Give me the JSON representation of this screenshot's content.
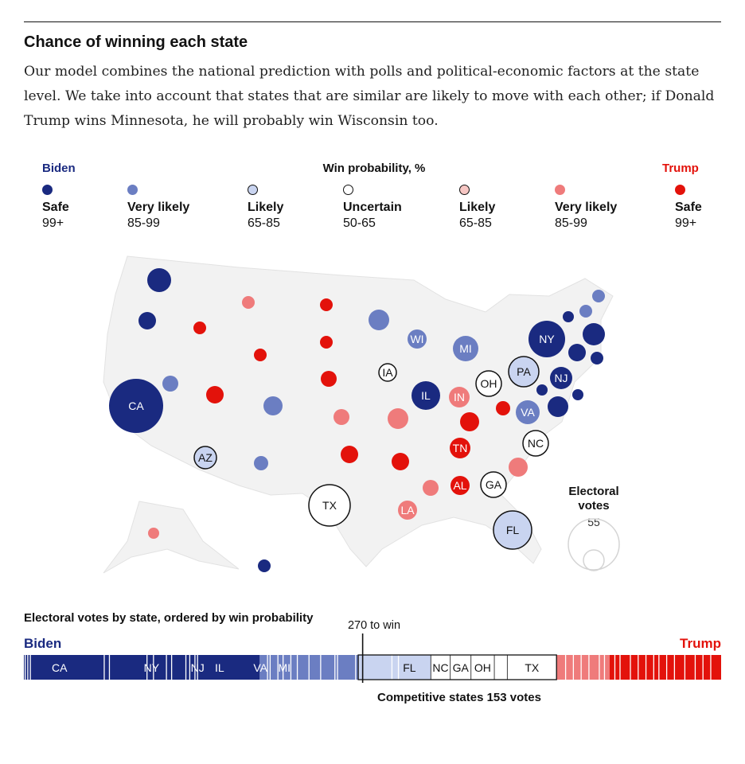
{
  "header": {
    "title": "Chance of winning each state",
    "subtitle": "Our model combines the national prediction with polls and political-economic factors at the state level. We take into account that states that are similar are likely to move with each other; if Donald Trump wins Minnesota, he will probably win Wisconsin too."
  },
  "legend": {
    "left_label": "Biden",
    "heading": "Win probability, %",
    "right_label": "Trump",
    "items": [
      {
        "label": "Safe",
        "range": "99+",
        "fill": "#1a2a80",
        "stroke": "#1a2a80"
      },
      {
        "label": "Very likely",
        "range": "85-99",
        "fill": "#6b7ec2",
        "stroke": "#6b7ec2"
      },
      {
        "label": "Likely",
        "range": "65-85",
        "fill": "#c9d4f0",
        "stroke": "#121212"
      },
      {
        "label": "Uncertain",
        "range": "50-65",
        "fill": "#ffffff",
        "stroke": "#121212"
      },
      {
        "label": "Likely",
        "range": "65-85",
        "fill": "#f6c6c3",
        "stroke": "#121212"
      },
      {
        "label": "Very likely",
        "range": "85-99",
        "fill": "#ef7b7b",
        "stroke": "#ef7b7b"
      },
      {
        "label": "Safe",
        "range": "99+",
        "fill": "#e3120b",
        "stroke": "#e3120b"
      }
    ]
  },
  "colors": {
    "biden_safe": "#1a2a80",
    "biden_very_likely": "#6b7ec2",
    "biden_likely": "#c9d4f0",
    "uncertain": "#ffffff",
    "trump_likely": "#f6c6c3",
    "trump_very_likely": "#ef7b7b",
    "trump_safe": "#e3120b"
  },
  "size_key": {
    "title_line1": "Electoral",
    "title_line2": "votes",
    "value": "55"
  },
  "chart_data": [
    {
      "type": "scatter",
      "description_visible": "map",
      "states": [
        {
          "state": "WA",
          "rating": "biden_safe",
          "ev": 12,
          "label": ""
        },
        {
          "state": "OR",
          "rating": "biden_safe",
          "ev": 7,
          "label": ""
        },
        {
          "state": "CA",
          "rating": "biden_safe",
          "ev": 55,
          "label": "CA"
        },
        {
          "state": "NV",
          "rating": "biden_very_likely",
          "ev": 6,
          "label": ""
        },
        {
          "state": "ID",
          "rating": "trump_safe",
          "ev": 4,
          "label": ""
        },
        {
          "state": "MT",
          "rating": "trump_very_likely",
          "ev": 3,
          "label": ""
        },
        {
          "state": "WY",
          "rating": "trump_safe",
          "ev": 3,
          "label": ""
        },
        {
          "state": "UT",
          "rating": "trump_safe",
          "ev": 6,
          "label": ""
        },
        {
          "state": "AZ",
          "rating": "biden_likely",
          "ev": 11,
          "label": "AZ"
        },
        {
          "state": "CO",
          "rating": "biden_very_likely",
          "ev": 9,
          "label": ""
        },
        {
          "state": "NM",
          "rating": "biden_very_likely",
          "ev": 5,
          "label": ""
        },
        {
          "state": "ND",
          "rating": "trump_safe",
          "ev": 3,
          "label": ""
        },
        {
          "state": "SD",
          "rating": "trump_safe",
          "ev": 3,
          "label": ""
        },
        {
          "state": "NE",
          "rating": "trump_safe",
          "ev": 5,
          "label": ""
        },
        {
          "state": "KS",
          "rating": "trump_very_likely",
          "ev": 6,
          "label": ""
        },
        {
          "state": "OK",
          "rating": "trump_safe",
          "ev": 7,
          "label": ""
        },
        {
          "state": "TX",
          "rating": "uncertain",
          "ev": 38,
          "label": "TX"
        },
        {
          "state": "MN",
          "rating": "biden_very_likely",
          "ev": 10,
          "label": ""
        },
        {
          "state": "IA",
          "rating": "uncertain",
          "ev": 6,
          "label": "IA"
        },
        {
          "state": "MO",
          "rating": "trump_very_likely",
          "ev": 10,
          "label": ""
        },
        {
          "state": "AR",
          "rating": "trump_safe",
          "ev": 6,
          "label": ""
        },
        {
          "state": "LA",
          "rating": "trump_very_likely",
          "ev": 8,
          "label": "LA"
        },
        {
          "state": "WI",
          "rating": "biden_very_likely",
          "ev": 10,
          "label": "WI"
        },
        {
          "state": "IL",
          "rating": "biden_safe",
          "ev": 20,
          "label": "IL"
        },
        {
          "state": "MI",
          "rating": "biden_very_likely",
          "ev": 16,
          "label": "MI"
        },
        {
          "state": "IN",
          "rating": "trump_very_likely",
          "ev": 11,
          "label": "IN"
        },
        {
          "state": "OH",
          "rating": "uncertain",
          "ev": 18,
          "label": "OH"
        },
        {
          "state": "KY",
          "rating": "trump_safe",
          "ev": 8,
          "label": ""
        },
        {
          "state": "TN",
          "rating": "trump_safe",
          "ev": 11,
          "label": "TN"
        },
        {
          "state": "MS",
          "rating": "trump_very_likely",
          "ev": 6,
          "label": ""
        },
        {
          "state": "AL",
          "rating": "trump_safe",
          "ev": 9,
          "label": "AL"
        },
        {
          "state": "GA",
          "rating": "uncertain",
          "ev": 16,
          "label": "GA"
        },
        {
          "state": "FL",
          "rating": "biden_likely",
          "ev": 29,
          "label": "FL"
        },
        {
          "state": "SC",
          "rating": "trump_very_likely",
          "ev": 9,
          "label": ""
        },
        {
          "state": "NC",
          "rating": "uncertain",
          "ev": 15,
          "label": "NC"
        },
        {
          "state": "VA",
          "rating": "biden_very_likely",
          "ev": 13,
          "label": "VA"
        },
        {
          "state": "WV",
          "rating": "trump_safe",
          "ev": 5,
          "label": ""
        },
        {
          "state": "PA",
          "rating": "biden_likely",
          "ev": 20,
          "label": "PA"
        },
        {
          "state": "NY",
          "rating": "biden_safe",
          "ev": 29,
          "label": "NY"
        },
        {
          "state": "NJ",
          "rating": "biden_safe",
          "ev": 14,
          "label": "NJ"
        },
        {
          "state": "MD",
          "rating": "biden_safe",
          "ev": 10,
          "label": ""
        },
        {
          "state": "DE",
          "rating": "biden_safe",
          "ev": 3,
          "label": ""
        },
        {
          "state": "DC",
          "rating": "biden_safe",
          "ev": 3,
          "label": ""
        },
        {
          "state": "CT",
          "rating": "biden_safe",
          "ev": 7,
          "label": ""
        },
        {
          "state": "MA",
          "rating": "biden_safe",
          "ev": 11,
          "label": ""
        },
        {
          "state": "RI",
          "rating": "biden_safe",
          "ev": 4,
          "label": ""
        },
        {
          "state": "VT",
          "rating": "biden_safe",
          "ev": 3,
          "label": ""
        },
        {
          "state": "NH",
          "rating": "biden_very_likely",
          "ev": 4,
          "label": ""
        },
        {
          "state": "ME",
          "rating": "biden_very_likely",
          "ev": 4,
          "label": ""
        },
        {
          "state": "AK",
          "rating": "trump_very_likely",
          "ev": 3,
          "label": ""
        },
        {
          "state": "HI",
          "rating": "biden_safe",
          "ev": 4,
          "label": ""
        }
      ]
    },
    {
      "type": "bar",
      "title": "Electoral votes by state, ordered by win probability",
      "left_label": "Biden",
      "right_label": "Trump",
      "threshold_label": "270 to win",
      "threshold_value": 270,
      "total_ev": 538,
      "competitive_label": "Competitive states 153 votes",
      "competitive_ev": 153,
      "segments": [
        {
          "label": "CA",
          "ev": 55,
          "rating": "biden_safe"
        },
        {
          "label": "NY",
          "ev": 29,
          "rating": "biden_safe"
        },
        {
          "label": "NJ",
          "ev": 14,
          "rating": "biden_safe"
        },
        {
          "label": "IL",
          "ev": 20,
          "rating": "biden_safe"
        },
        {
          "label": "VA",
          "ev": 13,
          "rating": "biden_very_likely"
        },
        {
          "label": "MI",
          "ev": 16,
          "rating": "biden_very_likely"
        },
        {
          "label": "FL",
          "ev": 29,
          "rating": "biden_likely"
        },
        {
          "label": "NC",
          "ev": 15,
          "rating": "uncertain"
        },
        {
          "label": "GA",
          "ev": 16,
          "rating": "uncertain"
        },
        {
          "label": "OH",
          "ev": 18,
          "rating": "uncertain"
        },
        {
          "label": "TX",
          "ev": 38,
          "rating": "uncertain"
        }
      ]
    }
  ]
}
